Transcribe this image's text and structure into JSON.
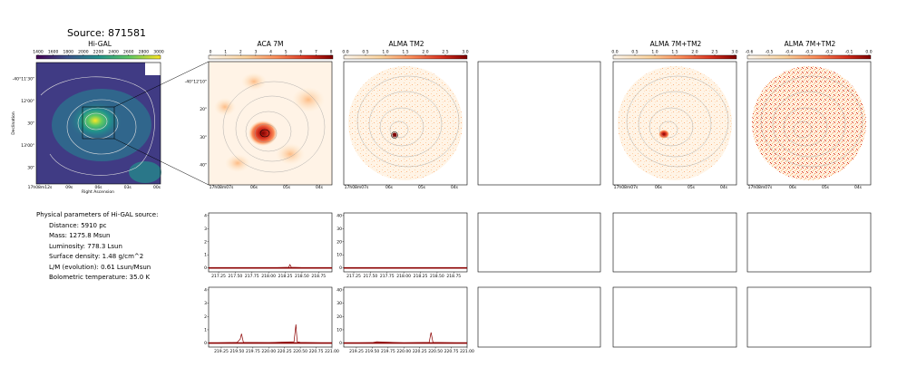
{
  "header": {
    "title": "Source: 871581"
  },
  "panels": {
    "higal": "Hi-GAL",
    "aca": "ACA 7M",
    "almatm2": "ALMA TM2",
    "comb1": "ALMA 7M+TM2",
    "comb2": "ALMA 7M+TM2"
  },
  "higal_axes": {
    "colorbar_ticks": [
      "1400",
      "1600",
      "1800",
      "2000",
      "2200",
      "2400",
      "2600",
      "2800",
      "3000"
    ],
    "y_ticks": [
      "-40°11'30\"",
      "12'00\"",
      "30\"",
      "13'00\"",
      "30\""
    ],
    "x_ticks": [
      "17h08m12s",
      "09s",
      "06s",
      "03s",
      "00s"
    ],
    "xlabel": "Right Ascension",
    "ylabel": "Declination"
  },
  "aca_axes": {
    "colorbar_ticks": [
      "0",
      "1",
      "2",
      "3",
      "4",
      "5",
      "6",
      "7",
      "8"
    ],
    "y_ticks": [
      "-40°12'10\"",
      "20\"",
      "30\"",
      "40\""
    ],
    "x_ticks": [
      "17h08m07s",
      "06s",
      "05s",
      "04s"
    ]
  },
  "tm2_axes": {
    "colorbar_ticks": [
      "0.0",
      "0.5",
      "1.0",
      "1.5",
      "2.0",
      "2.5",
      "3.0"
    ],
    "x_ticks": [
      "17h08m07s",
      "06s",
      "05s",
      "04s"
    ]
  },
  "comb1_axes": {
    "colorbar_ticks": [
      "0.0",
      "0.5",
      "1.0",
      "1.5",
      "2.0",
      "2.5",
      "3.0"
    ],
    "x_ticks": [
      "17h08m07s",
      "06s",
      "05s",
      "04s"
    ]
  },
  "comb2_axes": {
    "colorbar_ticks": [
      "-0.6",
      "-0.5",
      "-0.4",
      "-0.3",
      "-0.2",
      "-0.1",
      "0.0"
    ],
    "x_ticks": [
      "17h08m07s",
      "06s",
      "05s",
      "04s"
    ]
  },
  "params": {
    "heading": "Physical parameters of Hi-GAL source:",
    "distance": "Distance: 5910 pc",
    "mass": "Mass: 1275.8 Msun",
    "luminosity": "Luminosity: 778.3 Lsun",
    "surface_density": "Surface density: 1.48 g/cm^2",
    "lm": "L/M (evolution): 0.61 Lsun/Msun",
    "tbol": "Bolometric temperature: 35.0 K"
  },
  "colors": {
    "viridis_dark": "#440154",
    "viridis_mid": "#21918c",
    "viridis_bright": "#fde725",
    "hot_dark": "#7f0000",
    "spectrum_line": "#8b0000"
  },
  "chart_data": [
    {
      "type": "line",
      "panel": "spectrum-aca-row1",
      "x_ticks": [
        "217.25",
        "217.50",
        "217.75",
        "218.00",
        "218.25",
        "218.50",
        "218.75"
      ],
      "y_ticks": [
        "0",
        "1",
        "2",
        "3",
        "4"
      ],
      "xlim": [
        217.1,
        218.95
      ],
      "ylim": [
        -0.3,
        4.2
      ],
      "x": [
        217.1,
        217.5,
        217.9,
        218.2,
        218.3,
        218.32,
        218.34,
        218.5,
        218.95
      ],
      "y": [
        0.0,
        0.02,
        0.0,
        0.03,
        0.05,
        0.25,
        0.05,
        0.02,
        0.0
      ]
    },
    {
      "type": "line",
      "panel": "spectrum-tm2-row1",
      "x_ticks": [
        "217.25",
        "217.50",
        "217.75",
        "218.00",
        "218.25",
        "218.50",
        "218.75"
      ],
      "y_ticks": [
        "0",
        "10",
        "20",
        "30",
        "40"
      ],
      "xlim": [
        217.1,
        218.95
      ],
      "ylim": [
        -3,
        42
      ],
      "x": [
        217.1,
        217.5,
        217.9,
        218.3,
        218.95
      ],
      "y": [
        0.0,
        0.1,
        0.0,
        0.1,
        0.0
      ]
    },
    {
      "type": "line",
      "panel": "spectrum-aca-row2",
      "x_ticks": [
        "219.25",
        "219.50",
        "219.75",
        "220.00",
        "220.25",
        "220.50",
        "220.75",
        "221.00"
      ],
      "y_ticks": [
        "0",
        "1",
        "2",
        "3",
        "4"
      ],
      "xlim": [
        219.05,
        221.0
      ],
      "ylim": [
        -0.3,
        4.2
      ],
      "x": [
        219.05,
        219.5,
        219.55,
        219.57,
        219.6,
        220.0,
        220.4,
        220.43,
        220.45,
        220.5,
        221.0
      ],
      "y": [
        0.0,
        0.05,
        0.3,
        0.7,
        0.05,
        0.03,
        0.1,
        1.4,
        0.1,
        0.05,
        0.0
      ]
    },
    {
      "type": "line",
      "panel": "spectrum-tm2-row2",
      "x_ticks": [
        "219.25",
        "219.50",
        "219.75",
        "220.00",
        "220.25",
        "220.50",
        "220.75",
        "221.00"
      ],
      "y_ticks": [
        "0",
        "10",
        "20",
        "30",
        "40"
      ],
      "xlim": [
        219.05,
        221.0
      ],
      "ylim": [
        -3,
        42
      ],
      "x": [
        219.05,
        219.5,
        219.57,
        220.0,
        220.4,
        220.43,
        220.46,
        221.0
      ],
      "y": [
        0.0,
        0.3,
        1.0,
        0.2,
        0.5,
        8.0,
        0.5,
        0.0
      ]
    }
  ]
}
